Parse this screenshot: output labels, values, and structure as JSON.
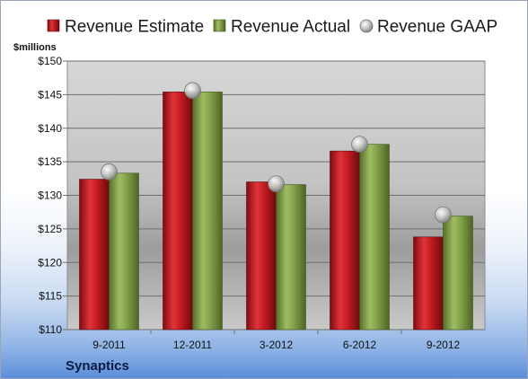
{
  "chart_data": {
    "type": "bar",
    "categories": [
      "9-2011",
      "12-2011",
      "3-2012",
      "6-2012",
      "9-2012"
    ],
    "series": [
      {
        "name": "Revenue Estimate",
        "values": [
          132.4,
          145.4,
          132.0,
          136.6,
          123.8
        ],
        "color": "#cc1f24"
      },
      {
        "name": "Revenue Actual",
        "values": [
          133.3,
          145.4,
          131.6,
          137.6,
          126.9
        ],
        "color": "#8cac4e"
      },
      {
        "name": "Revenue GAAP",
        "values": [
          133.5,
          145.6,
          131.7,
          137.6,
          127.1
        ],
        "color": "#bdbdbd",
        "marker": "circle"
      }
    ],
    "ylabel": "$millions",
    "ylim": [
      110,
      150
    ],
    "yticks": [
      "$110",
      "$115",
      "$120",
      "$125",
      "$130",
      "$135",
      "$140",
      "$145",
      "$150"
    ],
    "grid": true,
    "legend": "top"
  },
  "company": "Synaptics"
}
